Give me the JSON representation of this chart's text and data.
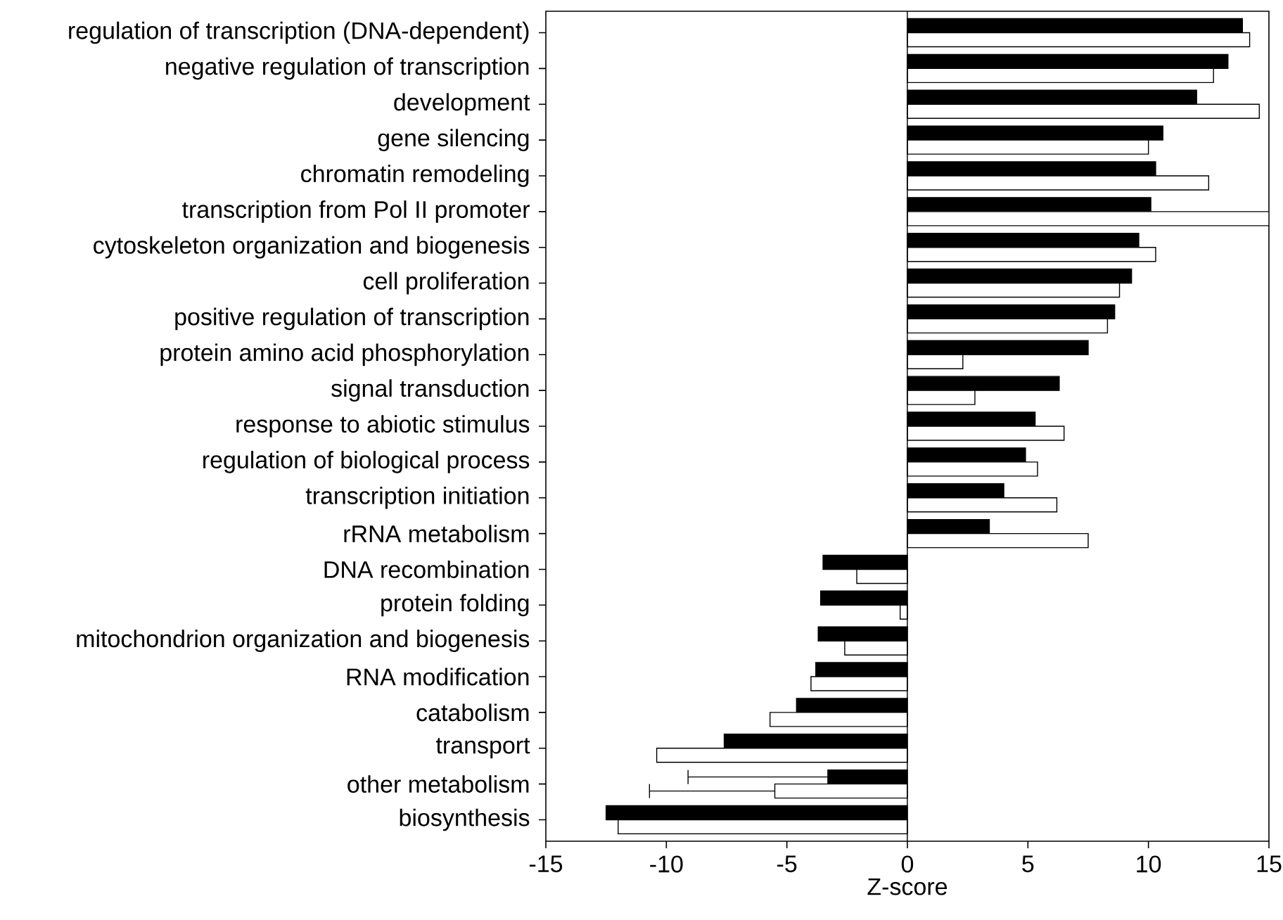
{
  "chart_data": {
    "type": "bar",
    "orientation": "horizontal",
    "xlabel": "Z-score",
    "categories": [
      "regulation of transcription (DNA-dependent)",
      "negative regulation of transcription",
      "development",
      "gene silencing",
      "chromatin remodeling",
      "transcription from Pol II promoter",
      "cytoskeleton organization and biogenesis",
      "cell proliferation",
      "positive regulation of transcription",
      "protein amino acid phosphorylation",
      "signal transduction",
      "response to abiotic stimulus",
      "regulation of biological process",
      "transcription initiation",
      "rRNA metabolism",
      "DNA recombination",
      "protein folding",
      "mitochondrion organization and biogenesis",
      "RNA modification",
      "catabolism",
      "transport",
      "other metabolism",
      "biosynthesis"
    ],
    "series": [
      {
        "color": "#000000",
        "values": [
          13.9,
          13.3,
          12.0,
          10.6,
          10.3,
          10.1,
          9.6,
          9.3,
          8.6,
          7.5,
          6.3,
          5.3,
          4.9,
          4.0,
          3.4,
          -3.5,
          -3.6,
          -3.7,
          -3.8,
          -4.6,
          -7.6,
          -3.3,
          -12.5
        ],
        "errors": [
          null,
          null,
          null,
          null,
          null,
          null,
          null,
          null,
          null,
          null,
          null,
          null,
          null,
          null,
          null,
          null,
          null,
          null,
          null,
          null,
          null,
          [
            -9.1,
            -3.3
          ],
          null
        ]
      },
      {
        "color": "#ffffff",
        "values": [
          14.2,
          12.7,
          14.6,
          10.0,
          12.5,
          15.0,
          10.3,
          8.8,
          8.3,
          2.3,
          2.8,
          6.5,
          5.4,
          6.2,
          7.5,
          -2.1,
          -0.3,
          -2.6,
          -4.0,
          -5.7,
          -10.4,
          -5.5,
          -12.0
        ],
        "errors": [
          null,
          null,
          null,
          null,
          null,
          null,
          null,
          null,
          null,
          null,
          null,
          null,
          null,
          null,
          null,
          null,
          null,
          null,
          null,
          null,
          null,
          [
            -10.7,
            -5.5
          ],
          null
        ]
      }
    ],
    "xlim": [
      -15,
      15
    ],
    "xticks": [
      -15,
      -10,
      -5,
      0,
      5,
      10,
      15
    ],
    "ref_lines": [
      {
        "axis": "x",
        "value": 0
      }
    ],
    "grid": false
  }
}
